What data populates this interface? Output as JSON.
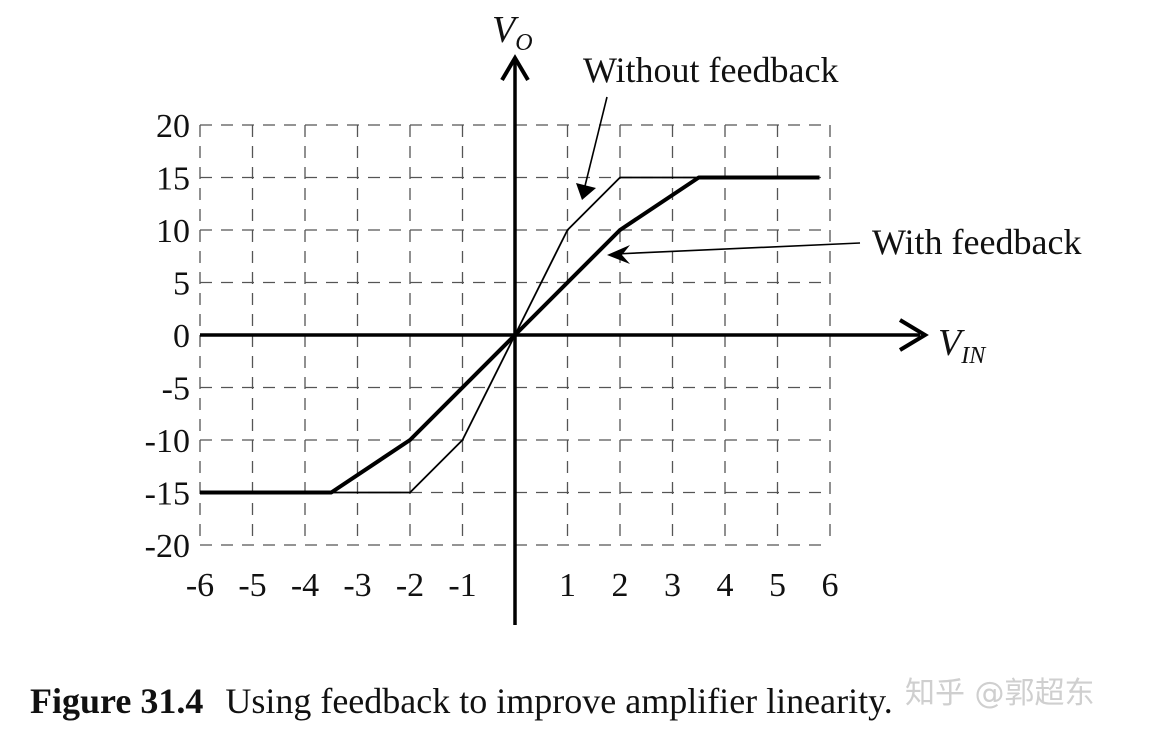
{
  "chart_data": {
    "type": "line",
    "title": "",
    "xlabel": "V_IN",
    "ylabel": "V_O",
    "xlim": [
      -6,
      6
    ],
    "ylim": [
      -20,
      20
    ],
    "grid": true,
    "x_ticks": [
      "-6",
      "-5",
      "-4",
      "-3",
      "-2",
      "-1",
      "1",
      "2",
      "3",
      "4",
      "5",
      "6"
    ],
    "y_ticks": [
      "20",
      "15",
      "10",
      "5",
      "0",
      "-5",
      "-10",
      "-15",
      "-20"
    ],
    "series": [
      {
        "name": "Without feedback",
        "style": "thin",
        "x": [
          -3.5,
          -2,
          -1,
          0,
          1,
          2,
          3.5
        ],
        "y": [
          -15,
          -15,
          -10,
          0,
          10,
          15,
          15
        ]
      },
      {
        "name": "With feedback",
        "style": "thick",
        "x": [
          -6,
          -3.5,
          -2,
          0,
          2,
          3.5,
          5.8
        ],
        "y": [
          -15,
          -15,
          -10,
          0,
          10,
          15,
          15
        ]
      }
    ],
    "annotations": [
      {
        "text": "Without feedback",
        "points_to": [
          1.2,
          12.5
        ]
      },
      {
        "text": "With feedback",
        "points_to": [
          1.8,
          7.5
        ]
      }
    ]
  },
  "labels": {
    "y_axis_main": "V",
    "y_axis_sub": "O",
    "x_axis_main": "V",
    "x_axis_sub": "IN",
    "without": "Without feedback",
    "with": "With feedback"
  },
  "caption": {
    "number": "Figure 31.4",
    "text": "Using feedback to improve amplifier linearity."
  },
  "watermark": "知乎 @郭超东"
}
